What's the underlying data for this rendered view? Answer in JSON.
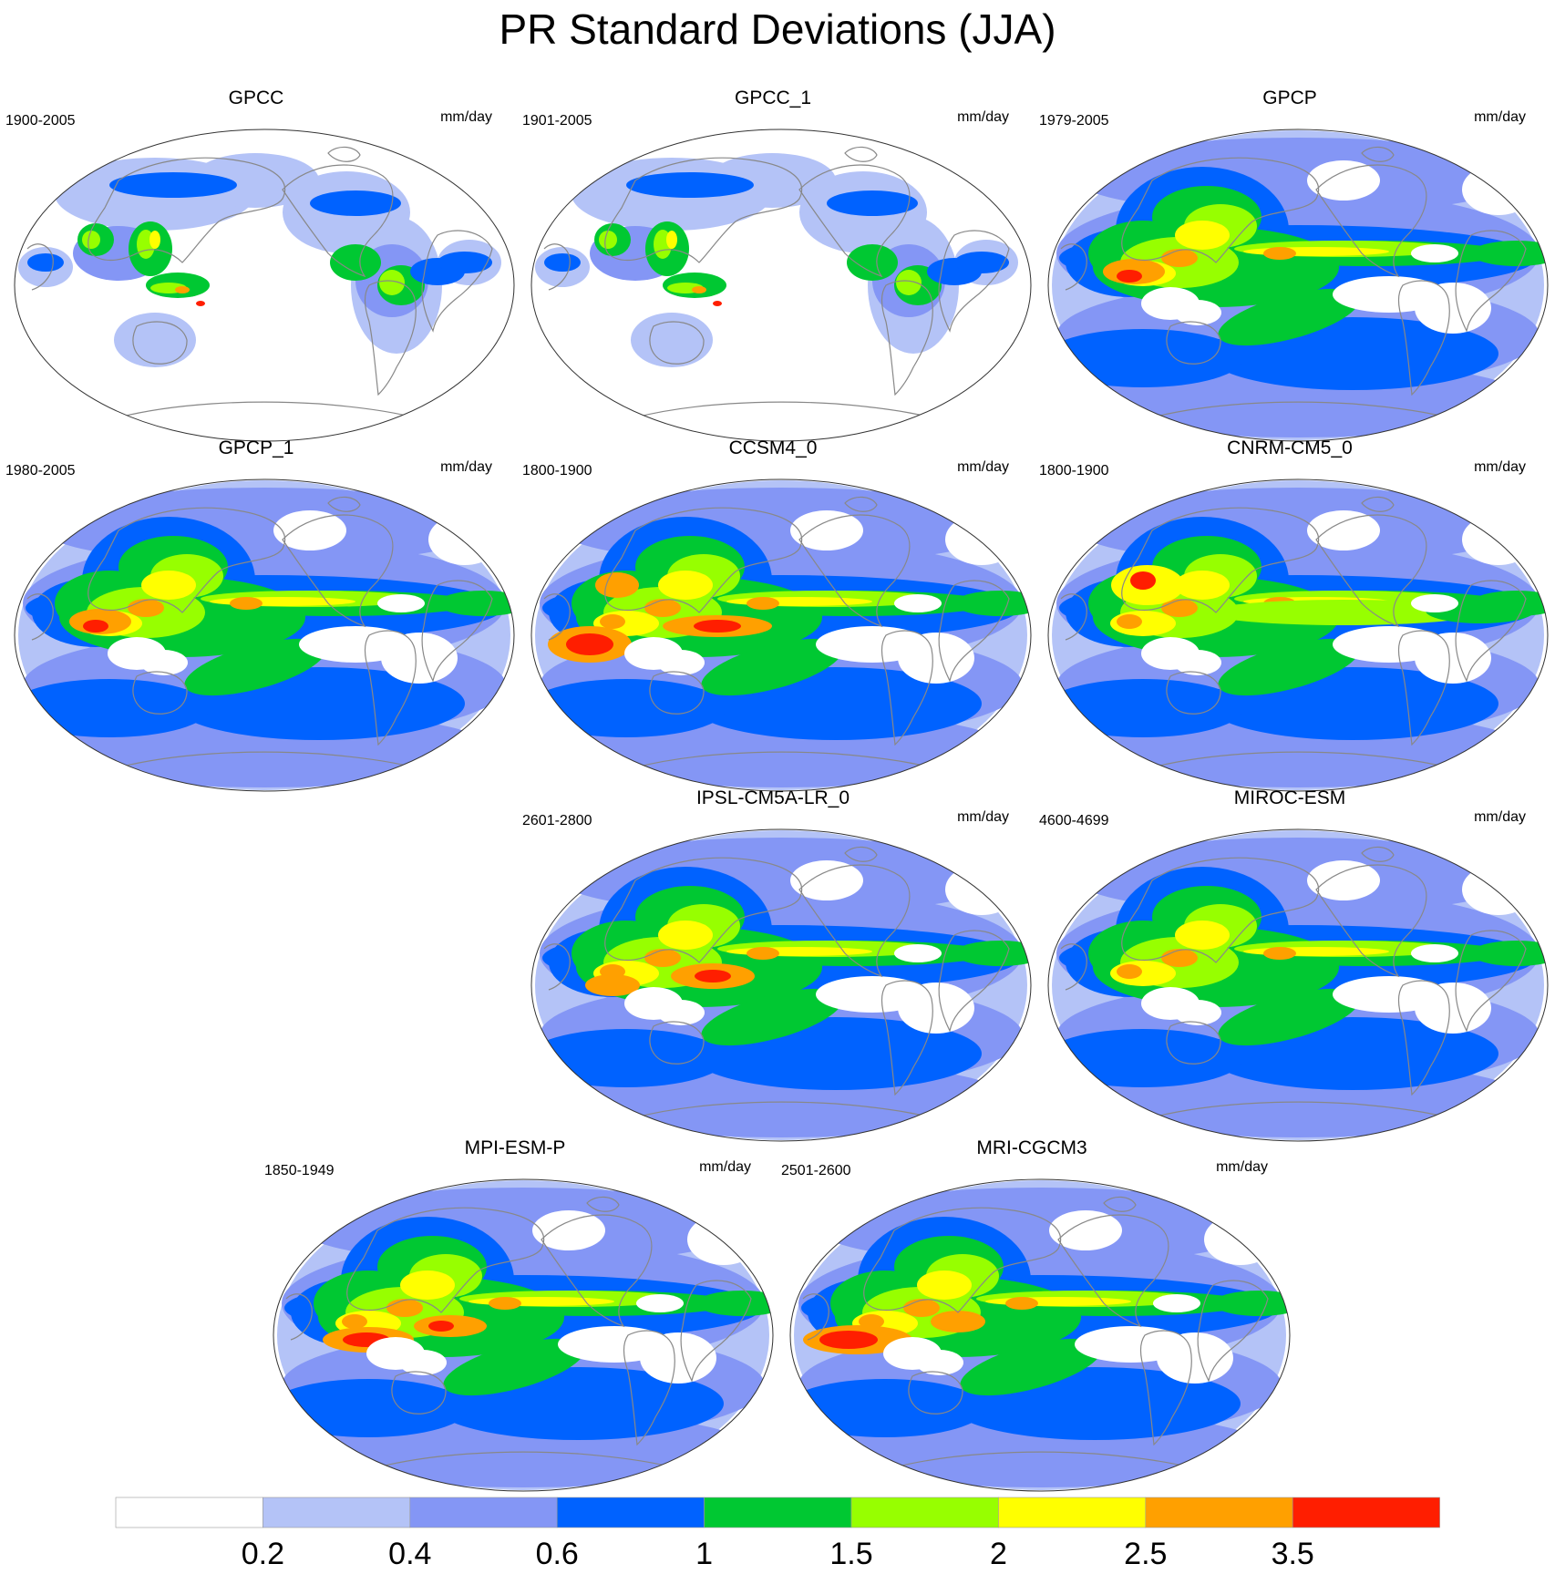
{
  "title": "PR Standard Deviations (JJA)",
  "colors": {
    "levels": [
      "#ffffff",
      "#b4c3f7",
      "#8496f5",
      "#0062ff",
      "#00c832",
      "#97ff00",
      "#ffff00",
      "#ffa000",
      "#ff1e00"
    ],
    "coastline": "#888888",
    "border": "#333333"
  },
  "colorbar": {
    "tick_labels": [
      "0.2",
      "0.4",
      "0.6",
      "1",
      "1.5",
      "2",
      "2.5",
      "3.5"
    ]
  },
  "panels": [
    {
      "name": "GPCC",
      "period": "1900-2005",
      "units": "mm/day",
      "style": "land"
    },
    {
      "name": "GPCC_1",
      "period": "1901-2005",
      "units": "mm/day",
      "style": "land"
    },
    {
      "name": "GPCP",
      "period": "1979-2005",
      "units": "mm/day",
      "style": "full"
    },
    {
      "name": "GPCP_1",
      "period": "1980-2005",
      "units": "mm/day",
      "style": "full"
    },
    {
      "name": "CCSM4_0",
      "period": "1800-1900",
      "units": "mm/day",
      "style": "full"
    },
    {
      "name": "CNRM-CM5_0",
      "period": "1800-1900",
      "units": "mm/day",
      "style": "full"
    },
    {
      "name": "IPSL-CM5A-LR_0",
      "period": "2601-2800",
      "units": "mm/day",
      "style": "full"
    },
    {
      "name": "MIROC-ESM",
      "period": "4600-4699",
      "units": "mm/day",
      "style": "full"
    },
    {
      "name": "MPI-ESM-P",
      "period": "1850-1949",
      "units": "mm/day",
      "style": "full"
    },
    {
      "name": "MRI-CGCM3",
      "period": "2501-2600",
      "units": "mm/day",
      "style": "full"
    }
  ]
}
